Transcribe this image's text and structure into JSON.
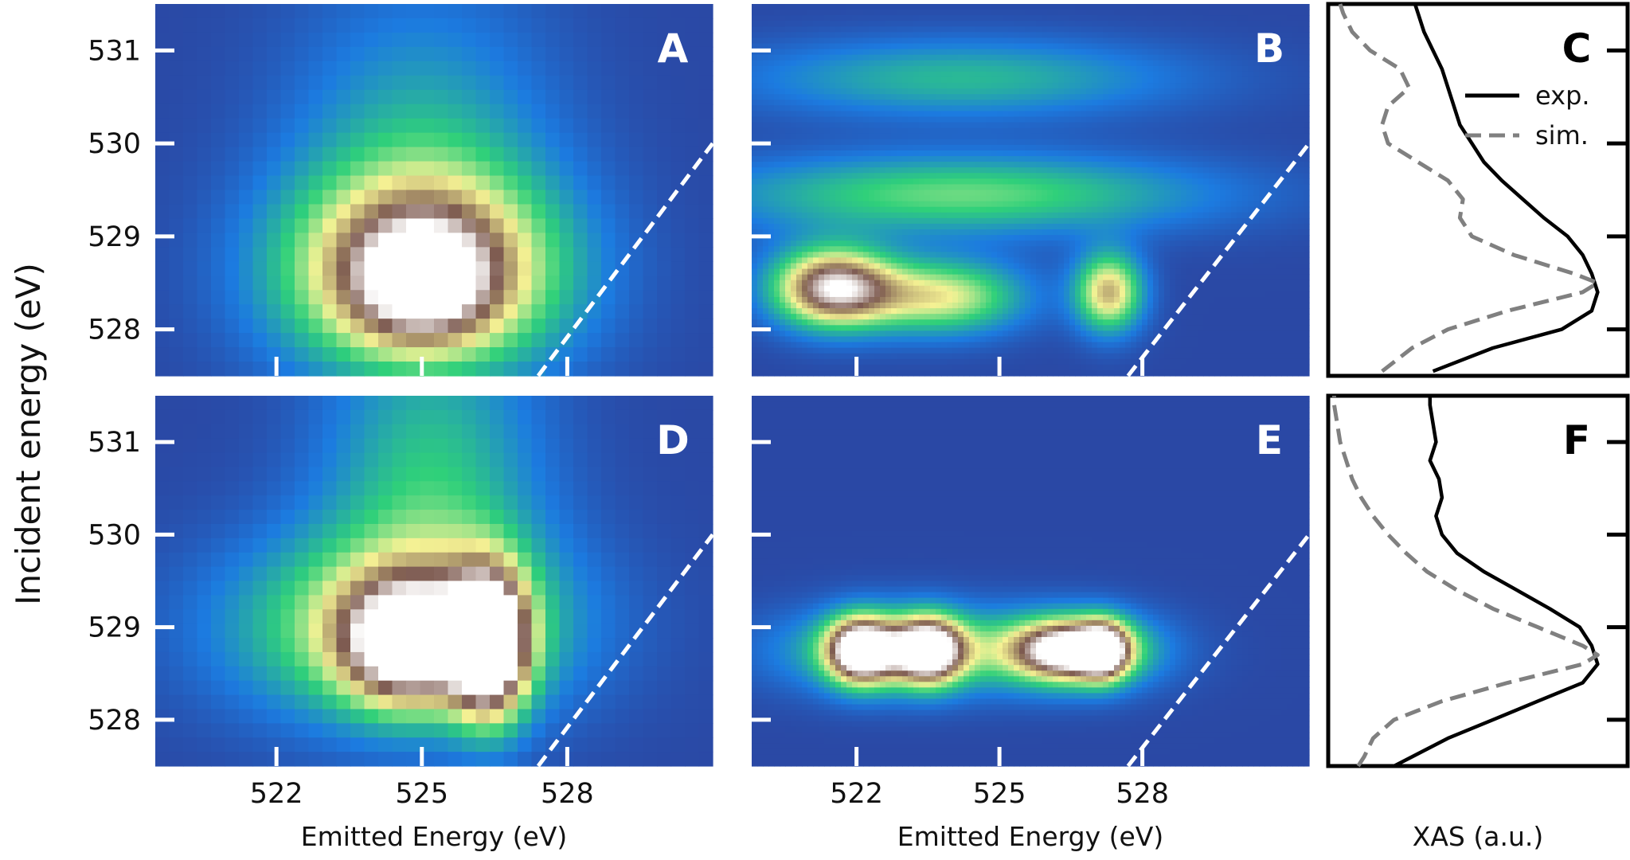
{
  "figure": {
    "y_axis_label": "Incident energy (eV)",
    "x_axis_label_left": "Emitted Energy (eV)",
    "x_axis_label_mid": "Emitted Energy (eV)",
    "x_axis_label_right": "XAS (a.u.)"
  },
  "colors": {
    "map_low": "#2e3a94",
    "map_mid_blue": "#1c7be0",
    "map_green": "#2fd07a",
    "map_yellow": "#f5f294",
    "map_brown": "#7d5a50",
    "map_high": "#ffffff",
    "dashed_line": "#ffffff",
    "exp_line": "#000000",
    "sim_line": "#808080"
  },
  "chart_data": [
    {
      "panel": "A",
      "type": "heatmap",
      "style": "pixelated",
      "title": "A",
      "xlabel": "",
      "ylabel": "Incident energy (eV)",
      "xlim": [
        519.5,
        531.0
      ],
      "ylim": [
        527.5,
        531.5
      ],
      "xticks": [
        522,
        525,
        528
      ],
      "yticks": [
        528,
        529,
        530,
        531
      ],
      "features": [
        {
          "x": 525.0,
          "y": 528.6,
          "sx": 2.0,
          "sy": 0.75,
          "amp": 0.85
        },
        {
          "x": 525.0,
          "y": 528.5,
          "sx": 0.9,
          "sy": 0.4,
          "amp": 0.35
        },
        {
          "x": 525.0,
          "y": 530.0,
          "sx": 1.9,
          "sy": 1.2,
          "amp": 0.25
        }
      ],
      "diagonal": {
        "x1": 527.4,
        "y1": 527.5,
        "x2": 531.0,
        "y2": 530.0
      }
    },
    {
      "panel": "B",
      "type": "heatmap",
      "style": "smooth",
      "title": "B",
      "xlabel": "Emitted Energy (eV)",
      "ylabel": "",
      "xlim": [
        519.8,
        531.5
      ],
      "ylim": [
        527.5,
        531.5
      ],
      "xticks": [
        522,
        525,
        528
      ],
      "yticks": [
        528,
        529,
        530,
        531
      ],
      "features": [
        {
          "x": 521.5,
          "y": 528.45,
          "sx": 0.9,
          "sy": 0.3,
          "amp": 0.9
        },
        {
          "x": 523.8,
          "y": 528.35,
          "sx": 1.2,
          "sy": 0.28,
          "amp": 0.55
        },
        {
          "x": 527.3,
          "y": 528.4,
          "sx": 0.5,
          "sy": 0.3,
          "amp": 0.65
        },
        {
          "x": 524.2,
          "y": 529.45,
          "sx": 3.6,
          "sy": 0.3,
          "amp": 0.42
        },
        {
          "x": 524.2,
          "y": 530.7,
          "sx": 3.2,
          "sy": 0.3,
          "amp": 0.3
        }
      ],
      "diagonal": {
        "x1": 527.7,
        "y1": 527.5,
        "x2": 531.5,
        "y2": 530.0
      }
    },
    {
      "panel": "C",
      "type": "line",
      "title": "C",
      "xlabel": "XAS (a.u.)",
      "ylabel": "",
      "ylim": [
        527.5,
        531.5
      ],
      "legend": {
        "position": "top-right",
        "entries": [
          "exp.",
          "sim."
        ]
      },
      "series": [
        {
          "name": "exp.",
          "style": "solid",
          "y": [
            527.55,
            527.8,
            528.0,
            528.2,
            528.4,
            528.6,
            528.8,
            529.0,
            529.2,
            529.4,
            529.6,
            529.8,
            530.0,
            530.2,
            530.4,
            530.6,
            530.8,
            531.0,
            531.2,
            531.4,
            531.5
          ],
          "x": [
            0.35,
            0.55,
            0.78,
            0.88,
            0.9,
            0.88,
            0.85,
            0.8,
            0.72,
            0.65,
            0.58,
            0.52,
            0.48,
            0.44,
            0.42,
            0.4,
            0.38,
            0.35,
            0.32,
            0.3,
            0.29
          ]
        },
        {
          "name": "sim.",
          "style": "dashed",
          "y": [
            527.55,
            527.8,
            528.0,
            528.2,
            528.4,
            528.5,
            528.6,
            528.8,
            529.0,
            529.2,
            529.4,
            529.6,
            529.8,
            530.0,
            530.2,
            530.4,
            530.6,
            530.8,
            531.0,
            531.2,
            531.4,
            531.5
          ],
          "x": [
            0.18,
            0.28,
            0.4,
            0.6,
            0.85,
            0.9,
            0.82,
            0.62,
            0.48,
            0.44,
            0.45,
            0.4,
            0.3,
            0.2,
            0.18,
            0.2,
            0.27,
            0.24,
            0.14,
            0.08,
            0.05,
            0.04
          ]
        }
      ]
    },
    {
      "panel": "D",
      "type": "heatmap",
      "style": "pixelated",
      "title": "D",
      "xlabel": "Emitted Energy (eV)",
      "ylabel": "Incident energy (eV)",
      "xlim": [
        519.5,
        531.0
      ],
      "ylim": [
        527.5,
        531.5
      ],
      "xticks": [
        522,
        525,
        528
      ],
      "yticks": [
        528,
        529,
        530,
        531
      ],
      "features": [
        {
          "x": 524.7,
          "y": 528.8,
          "sx": 0.9,
          "sy": 0.45,
          "amp": 0.7
        },
        {
          "x": 526.4,
          "y": 528.8,
          "sx": 0.55,
          "sy": 0.55,
          "amp": 1.0
        },
        {
          "x": 524.5,
          "y": 529.0,
          "sx": 2.4,
          "sy": 0.7,
          "amp": 0.55
        },
        {
          "x": 525.2,
          "y": 530.6,
          "sx": 1.6,
          "sy": 1.3,
          "amp": 0.33
        }
      ],
      "diagonal": {
        "x1": 527.4,
        "y1": 527.5,
        "x2": 531.0,
        "y2": 530.0
      }
    },
    {
      "panel": "E",
      "type": "heatmap",
      "style": "smooth",
      "title": "E",
      "xlabel": "Emitted Energy (eV)",
      "ylabel": "",
      "xlim": [
        519.8,
        531.5
      ],
      "ylim": [
        527.5,
        531.5
      ],
      "xticks": [
        522,
        525,
        528
      ],
      "yticks": [
        528,
        529,
        530,
        531
      ],
      "features": [
        {
          "x": 522.1,
          "y": 528.75,
          "sx": 0.5,
          "sy": 0.25,
          "amp": 0.95
        },
        {
          "x": 523.5,
          "y": 528.75,
          "sx": 0.5,
          "sy": 0.25,
          "amp": 0.9
        },
        {
          "x": 526.5,
          "y": 528.75,
          "sx": 0.8,
          "sy": 0.22,
          "amp": 0.75
        },
        {
          "x": 527.2,
          "y": 528.75,
          "sx": 0.35,
          "sy": 0.22,
          "amp": 0.6
        },
        {
          "x": 523.0,
          "y": 528.75,
          "sx": 1.8,
          "sy": 0.32,
          "amp": 0.45
        },
        {
          "x": 526.6,
          "y": 528.75,
          "sx": 1.3,
          "sy": 0.3,
          "amp": 0.4
        }
      ],
      "diagonal": {
        "x1": 527.7,
        "y1": 527.5,
        "x2": 531.5,
        "y2": 530.0
      }
    },
    {
      "panel": "F",
      "type": "line",
      "title": "F",
      "xlabel": "XAS (a.u.)",
      "ylabel": "",
      "ylim": [
        527.5,
        531.5
      ],
      "series": [
        {
          "name": "exp.",
          "style": "solid",
          "y": [
            527.5,
            527.8,
            528.0,
            528.2,
            528.4,
            528.6,
            528.8,
            529.0,
            529.2,
            529.4,
            529.6,
            529.8,
            530.0,
            530.2,
            530.4,
            530.6,
            530.8,
            531.0,
            531.2,
            531.4,
            531.5
          ],
          "x": [
            0.22,
            0.4,
            0.55,
            0.7,
            0.85,
            0.9,
            0.88,
            0.84,
            0.74,
            0.63,
            0.52,
            0.43,
            0.38,
            0.36,
            0.38,
            0.37,
            0.34,
            0.36,
            0.35,
            0.34,
            0.34
          ]
        },
        {
          "name": "sim.",
          "style": "dashed",
          "y": [
            527.5,
            527.6,
            527.8,
            528.0,
            528.2,
            528.4,
            528.6,
            528.7,
            528.8,
            529.0,
            529.2,
            529.4,
            529.6,
            529.8,
            530.0,
            530.2,
            530.4,
            530.6,
            530.8,
            531.0,
            531.2,
            531.4,
            531.5
          ],
          "x": [
            0.1,
            0.12,
            0.15,
            0.22,
            0.38,
            0.6,
            0.85,
            0.9,
            0.85,
            0.7,
            0.55,
            0.43,
            0.33,
            0.26,
            0.2,
            0.15,
            0.11,
            0.08,
            0.06,
            0.04,
            0.03,
            0.02,
            0.02
          ]
        }
      ]
    }
  ]
}
